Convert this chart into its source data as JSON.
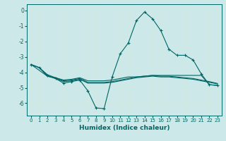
{
  "xlabel": "Humidex (Indice chaleur)",
  "background_color": "#cce8e8",
  "grid_color": "#d0e8e0",
  "line_color": "#006666",
  "xlim": [
    -0.5,
    23.5
  ],
  "ylim": [
    -6.8,
    0.4
  ],
  "yticks": [
    0,
    -1,
    -2,
    -3,
    -4,
    -5,
    -6
  ],
  "xticks": [
    0,
    1,
    2,
    3,
    4,
    5,
    6,
    7,
    8,
    9,
    10,
    11,
    12,
    13,
    14,
    15,
    16,
    17,
    18,
    19,
    20,
    21,
    22,
    23
  ],
  "line1_x": [
    0,
    1,
    2,
    3,
    4,
    5,
    6,
    7,
    8,
    9,
    10,
    11,
    12,
    13,
    14,
    15,
    16,
    17,
    18,
    19,
    20,
    21,
    22,
    23
  ],
  "line1_y": [
    -3.5,
    -3.7,
    -4.2,
    -4.4,
    -4.7,
    -4.6,
    -4.5,
    -5.2,
    -6.3,
    -6.35,
    -4.3,
    -2.8,
    -2.1,
    -0.65,
    -0.1,
    -0.55,
    -1.3,
    -2.5,
    -2.9,
    -2.9,
    -3.2,
    -4.1,
    -4.8,
    -4.85
  ],
  "line2_x": [
    0,
    1,
    2,
    3,
    4,
    5,
    6,
    7,
    8,
    9,
    10,
    11,
    12,
    13,
    14,
    15,
    16,
    17,
    18,
    19,
    20,
    21,
    22,
    23
  ],
  "line2_y": [
    -3.5,
    -3.7,
    -4.25,
    -4.4,
    -4.6,
    -4.55,
    -4.45,
    -4.7,
    -4.7,
    -4.7,
    -4.65,
    -4.55,
    -4.45,
    -4.35,
    -4.3,
    -4.25,
    -4.3,
    -4.3,
    -4.35,
    -4.4,
    -4.45,
    -4.55,
    -4.65,
    -4.75
  ],
  "line3_x": [
    0,
    1,
    2,
    3,
    4,
    5,
    6,
    7,
    8,
    9,
    10,
    11,
    12,
    13,
    14,
    15,
    16,
    17,
    18,
    19,
    20,
    21,
    22,
    23
  ],
  "line3_y": [
    -3.5,
    -3.7,
    -4.15,
    -4.35,
    -4.55,
    -4.5,
    -4.4,
    -4.65,
    -4.65,
    -4.65,
    -4.6,
    -4.5,
    -4.4,
    -4.3,
    -4.25,
    -4.2,
    -4.25,
    -4.25,
    -4.3,
    -4.35,
    -4.4,
    -4.5,
    -4.6,
    -4.72
  ],
  "line4_x": [
    0,
    2,
    3,
    4,
    5,
    6,
    7,
    8,
    9,
    10,
    11,
    12,
    13,
    14,
    15,
    16,
    17,
    18,
    19,
    20,
    21,
    22,
    23
  ],
  "line4_y": [
    -3.5,
    -4.25,
    -4.35,
    -4.5,
    -4.45,
    -4.35,
    -4.55,
    -4.55,
    -4.55,
    -4.5,
    -4.4,
    -4.3,
    -4.3,
    -4.25,
    -4.2,
    -4.2,
    -4.2,
    -4.2,
    -4.2,
    -4.2,
    -4.2,
    -4.8,
    -4.85
  ]
}
